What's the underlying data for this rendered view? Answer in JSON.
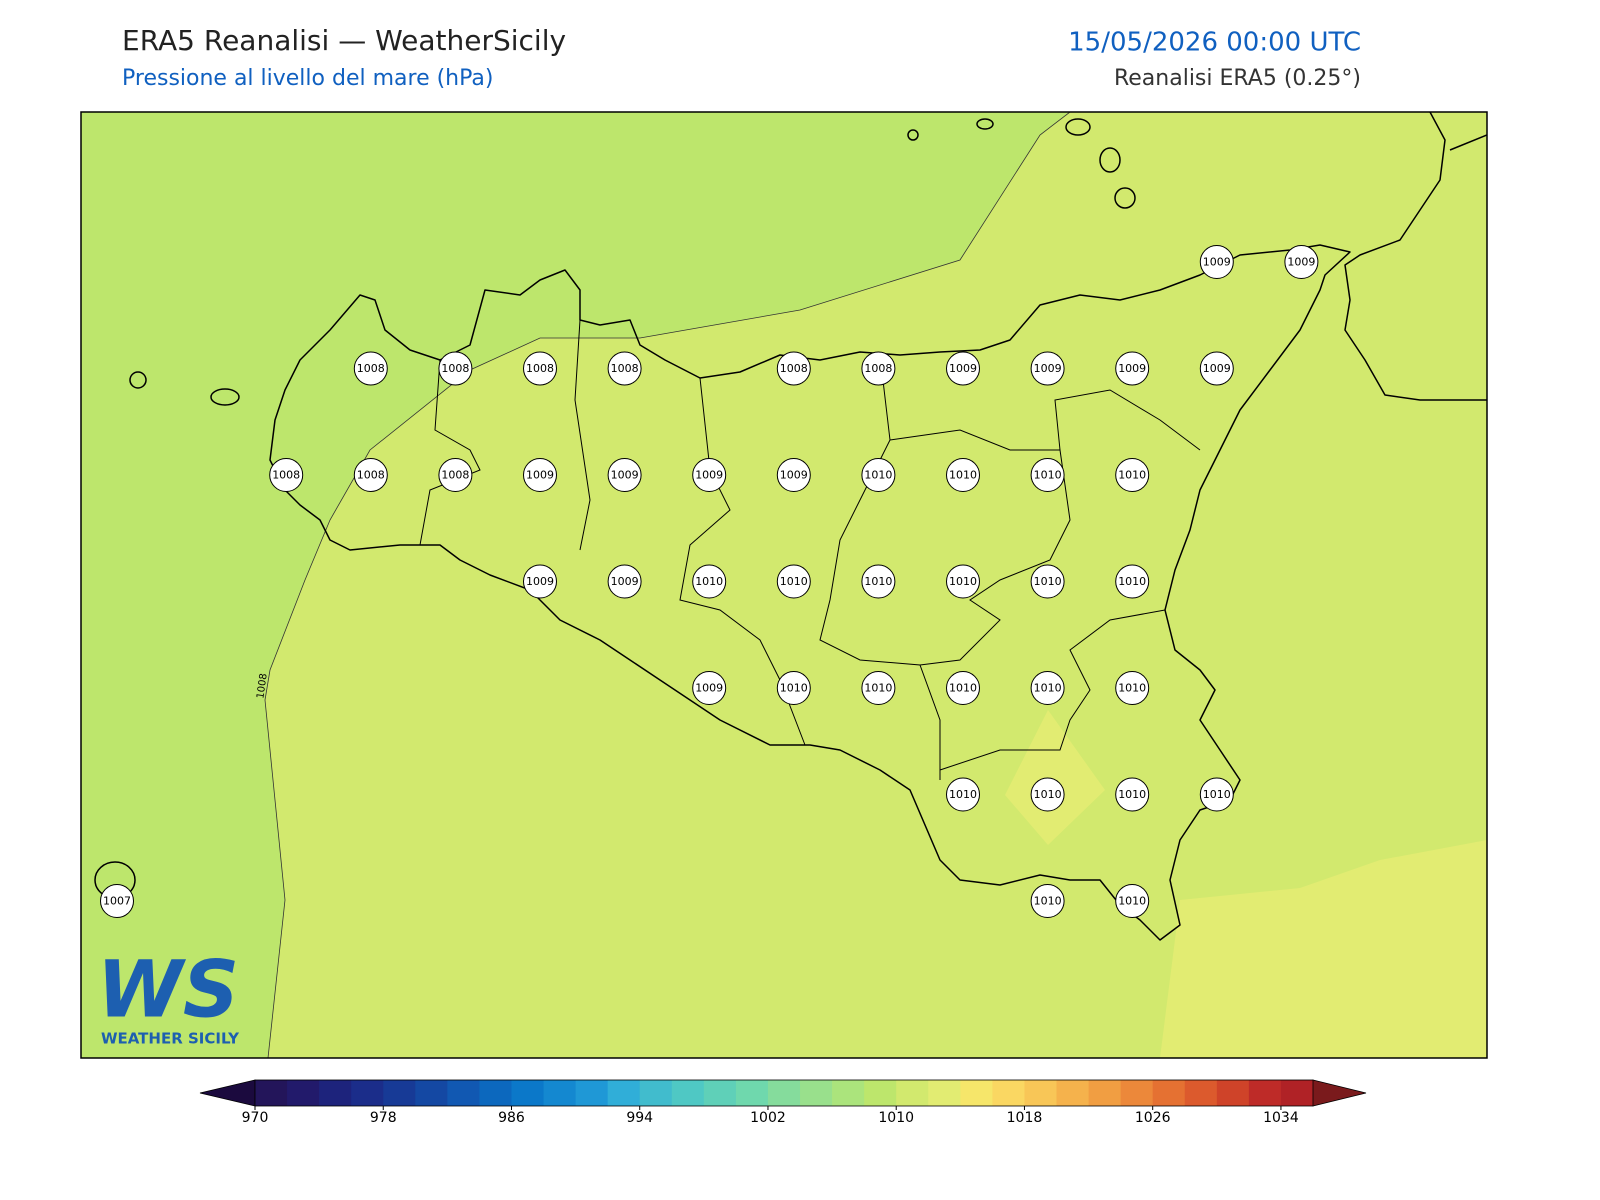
{
  "header": {
    "title": "ERA5 Reanalisi — WeatherSicily",
    "subtitle": "Pressione al livello del mare (hPa)",
    "datetime": "15/05/2026 00:00 UTC",
    "source": "Reanalisi ERA5 (0.25°)"
  },
  "logo": {
    "mark": "WS",
    "text": "WEATHER SICILY"
  },
  "map": {
    "contour_label": "1008",
    "pressure_grid": [
      [
        null,
        null,
        null,
        null,
        null,
        null,
        null,
        null,
        null,
        null,
        null,
        null,
        null,
        1009,
        1009
      ],
      [
        null,
        null,
        null,
        1008,
        1008,
        1008,
        1008,
        null,
        1008,
        1008,
        1009,
        1009,
        1009,
        1009,
        null
      ],
      [
        null,
        null,
        1008,
        1008,
        1008,
        1009,
        1009,
        1009,
        1009,
        1010,
        1010,
        1010,
        1010,
        null,
        null
      ],
      [
        null,
        null,
        null,
        null,
        null,
        1009,
        1009,
        1010,
        1010,
        1010,
        1010,
        1010,
        1010,
        null,
        null
      ],
      [
        null,
        null,
        null,
        null,
        null,
        null,
        null,
        1009,
        1010,
        1010,
        1010,
        1010,
        1010,
        null,
        null
      ],
      [
        null,
        null,
        null,
        null,
        null,
        null,
        null,
        null,
        null,
        null,
        1010,
        1010,
        1010,
        1010,
        null
      ],
      [
        1007,
        null,
        null,
        null,
        null,
        null,
        null,
        null,
        null,
        null,
        null,
        1010,
        1010,
        null,
        null
      ]
    ]
  },
  "colorbar": {
    "range": [
      970,
      1036
    ],
    "ticks": [
      970,
      978,
      986,
      994,
      1002,
      1010,
      1018,
      1026,
      1034
    ],
    "under": "#1b0a3e",
    "over": "#7a1a1c",
    "colors": [
      "#23155a",
      "#221a6b",
      "#1d237c",
      "#1b2d8a",
      "#173a96",
      "#1448a3",
      "#1158b2",
      "#0c68be",
      "#0b78c9",
      "#1488d0",
      "#1f98d6",
      "#30aed8",
      "#41bccd",
      "#4fc8c4",
      "#5fd0b8",
      "#6fd8ad",
      "#85dc9c",
      "#99e08c",
      "#abe47c",
      "#bde66c",
      "#d2e96e",
      "#e2ec72",
      "#f6e66a",
      "#fad762",
      "#f8c657",
      "#f5b24c",
      "#f19e42",
      "#ec883a",
      "#e57132",
      "#dc5a2d",
      "#cf4329",
      "#be2b28",
      "#b02226"
    ]
  }
}
